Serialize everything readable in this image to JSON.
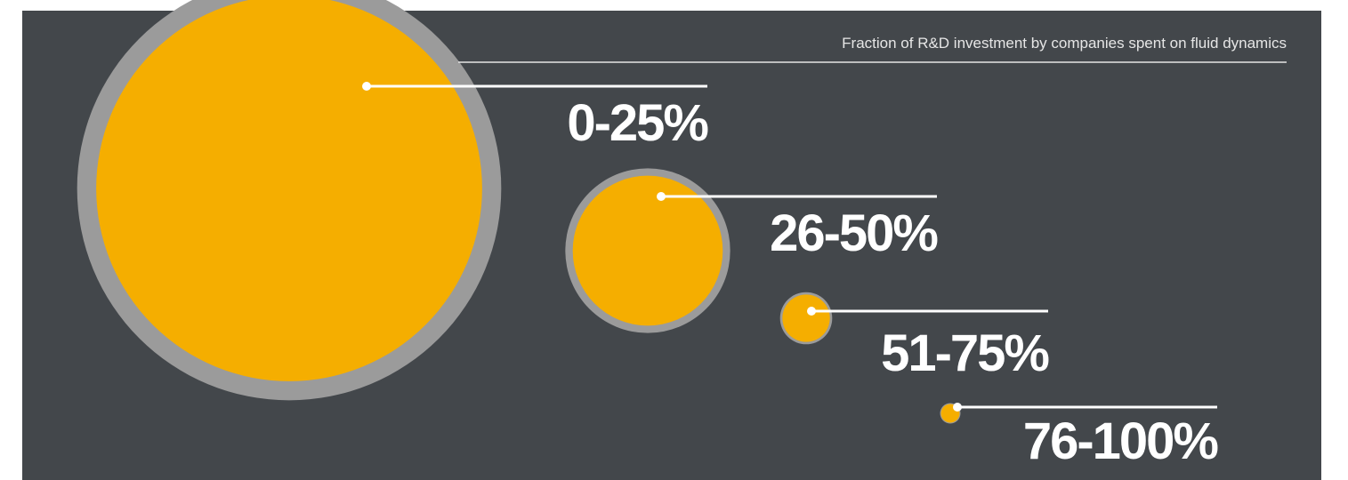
{
  "chart_data": {
    "type": "bubble",
    "title": "Fraction of R&D investment by companies spent on fluid dynamics",
    "categories": [
      "0-25%",
      "26-50%",
      "51-75%",
      "76-100%"
    ],
    "values": [
      86,
      13,
      1.3,
      0.2
    ],
    "color": "#f5ae00",
    "ring_color": "#9b9b9b"
  }
}
